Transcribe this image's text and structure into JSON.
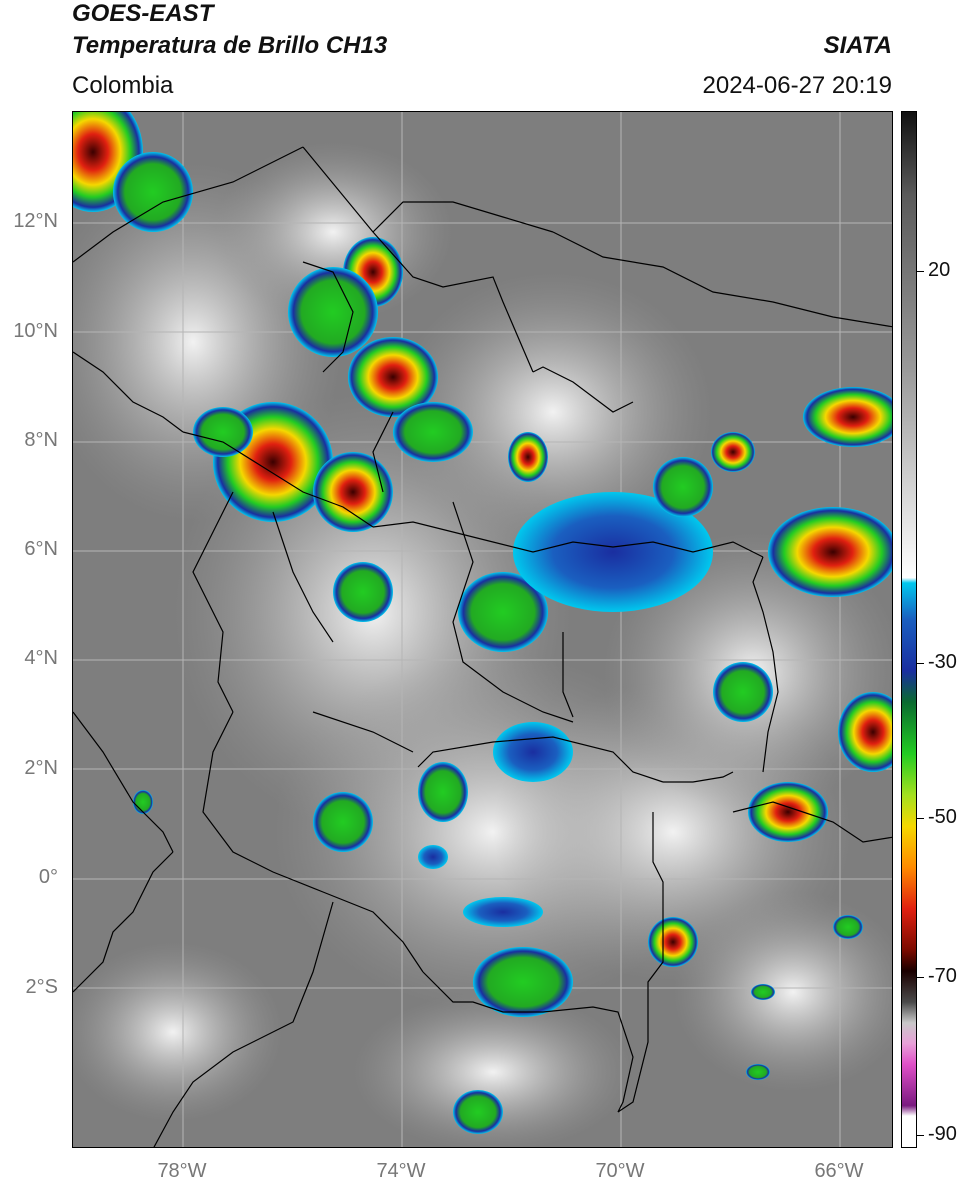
{
  "header": {
    "satellite": "GOES-EAST",
    "product": "Temperatura de Brillo CH13",
    "region": "Colombia",
    "organization": "SIATA",
    "datetime": "2024-06-27 20:19"
  },
  "map": {
    "latitude_labels": [
      "12°N",
      "10°N",
      "8°N",
      "6°N",
      "4°N",
      "2°N",
      "0°",
      "2°S"
    ],
    "longitude_labels": [
      "78°W",
      "74°W",
      "70°W",
      "66°W"
    ],
    "background_color": "#7b7b7b",
    "border_color": "#000000"
  },
  "colorbar": {
    "labels": [
      "20",
      "-30",
      "-50",
      "-70",
      "-90"
    ],
    "colors": {
      "warm_top": "#111111",
      "gray_mid": "#9a9a9a",
      "white": "#ffffff",
      "cyan": "#00c8ee",
      "blue": "#1a2ea0",
      "green": "#22cc22",
      "yellow": "#f5d800",
      "red": "#e02010",
      "dark_red": "#3a0000",
      "magenta": "#e050c8",
      "purple": "#7a1a80"
    }
  }
}
